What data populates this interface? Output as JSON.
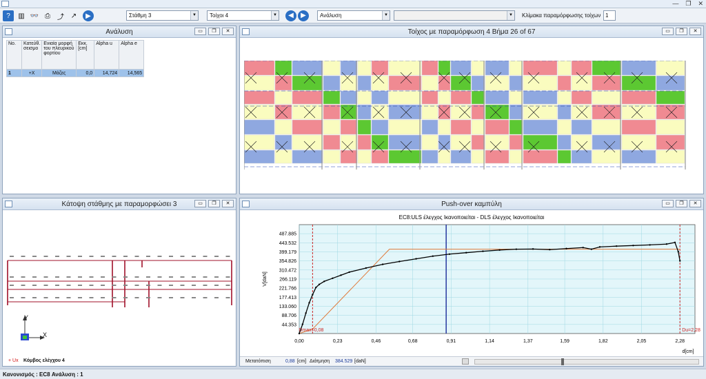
{
  "toolbar": {
    "level_select": "Στάθμη 3",
    "wall_select": "Τοίχοι 4",
    "analysis_select": "Ανάλυση",
    "empty_select": "",
    "scale_label": "Κλίμακα παραμόρφωσης τοίχων",
    "scale_value": "1"
  },
  "analysis_panel": {
    "title": "Ανάλυση",
    "columns": [
      "No.",
      "Κατεύθ. σεισμο",
      "Ενιαία μορφή του πλευρικού φορτίου",
      "Εκκ. [cm]",
      "Alpha u",
      "Alpha e"
    ],
    "rows": [
      [
        "1",
        "+X",
        "Μάζες",
        "0,0",
        "14,724",
        "14,565"
      ]
    ]
  },
  "wall_panel": {
    "title": "Τοίχος με παραμόρφωση 4 Βήμα 26 of 67"
  },
  "plan_panel": {
    "title": "Κάτοψη στάθμης με παραμορφώσει 3",
    "axis_y": "Y",
    "axis_x": "X",
    "node_label": "+ Ux",
    "node_text": "Κόμβος ελέγχου 4"
  },
  "pushover_panel": {
    "title": "Push-over καμπύλη",
    "subtitle": "EC8:ULS έλεγχος Ικανοποιείται - DLS έλεγχος Ικανοποιείται",
    "readout_disp_label": "Μετατόπιση",
    "readout_disp_value": "0,88",
    "readout_disp_unit": "[cm]",
    "readout_shear_label": "Διάτμηση",
    "readout_shear_value": "384.529",
    "readout_shear_unit": "[daN]"
  },
  "chart_data": {
    "type": "line",
    "title": "",
    "xlabel": "d[cm]",
    "ylabel": "V[daN]",
    "xlim": [
      0,
      2.37
    ],
    "ylim": [
      0,
      532
    ],
    "x_ticks": [
      "0,00",
      "0,23",
      "0,46",
      "0,68",
      "0,91",
      "1,14",
      "1,37",
      "1,59",
      "1,82",
      "2,05",
      "2,28"
    ],
    "y_ticks": [
      "44.353",
      "88.706",
      "133.060",
      "177.413",
      "221.766",
      "266.119",
      "310.472",
      "354.826",
      "399.179",
      "443.532",
      "487.885"
    ],
    "series": [
      {
        "x": [
          0.0,
          0.02,
          0.04,
          0.06,
          0.08,
          0.1,
          0.12,
          0.15,
          0.2,
          0.25,
          0.3,
          0.4,
          0.5,
          0.6,
          0.7,
          0.8,
          0.9,
          1.0,
          1.1,
          1.2,
          1.3,
          1.4,
          1.5,
          1.6,
          1.7,
          1.75,
          1.8,
          1.9,
          2.0,
          2.1,
          2.2,
          2.25,
          2.27,
          2.28
        ],
        "y": [
          0,
          45,
          100,
          150,
          190,
          225,
          240,
          255,
          270,
          285,
          300,
          320,
          338,
          352,
          365,
          378,
          388,
          395,
          402,
          408,
          412,
          413,
          410,
          415,
          420,
          412,
          423,
          427,
          430,
          433,
          437,
          445,
          400,
          355
        ]
      },
      {
        "x": [
          0.0,
          0.08,
          0.54,
          2.28
        ],
        "y": [
          0,
          22,
          412,
          412
        ]
      }
    ],
    "annotations": {
      "dmax_label": "Dmax=0,08",
      "du_label": "Du=2,28",
      "dmax_x": 0.08,
      "du_x": 2.28,
      "current_x": 0.88
    },
    "colors": {
      "curve": "#000000",
      "bilinear": "#e07a3a",
      "limit": "#cc2222",
      "current": "#1a2a9a",
      "plot_bg": "#e3f6fa"
    }
  },
  "statusbar": {
    "text": "Κανονισμός : EC8  Ανάλυση : 1"
  },
  "colors": {
    "accent": "#2b6fc4",
    "wall_red": "#f08a92",
    "wall_blue": "#8fa8e0",
    "wall_yellow": "#fafcbf",
    "wall_green": "#5cc832"
  }
}
